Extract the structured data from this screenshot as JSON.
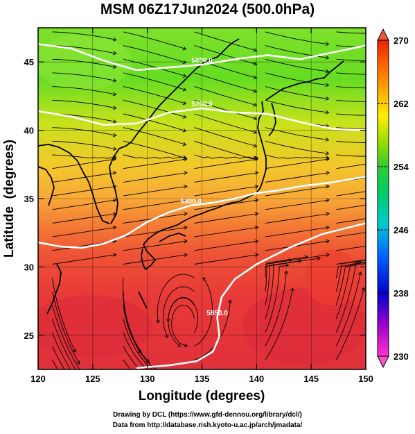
{
  "title": "MSM 06Z17Jun2024 (500.0hPa)",
  "axes": {
    "xlabel": "Longitude (degrees)",
    "ylabel": "Latitude  (degrees)",
    "xticks": [
      "120",
      "125",
      "130",
      "135",
      "140",
      "145",
      "150"
    ],
    "yticks": [
      "25",
      "30",
      "35",
      "40",
      "45"
    ]
  },
  "colorbar": {
    "ticks": [
      "230",
      "238",
      "246",
      "254",
      "262",
      "270"
    ],
    "colors": [
      "#ff33cc",
      "#9900cc",
      "#0000cc",
      "#0066ff",
      "#00cccc",
      "#00cc66",
      "#33cc33",
      "#99dd00",
      "#ffee00",
      "#ffaa00",
      "#ff6600",
      "#ee2200"
    ]
  },
  "contour_labels": [
    "5600.0",
    "5700.0",
    "5800.0",
    "5850.0"
  ],
  "credits": [
    "Drawing by DCL (https://www.gfd-dennou.org/library/dcl/)",
    "Data from http://database.rish.kyoto-u.ac.jp/arch/jmadata/"
  ],
  "chart_data": {
    "type": "heatmap",
    "variable": "temperature with streamlines and geopotential height contours",
    "level_hPa": 500.0,
    "xlim": [
      120,
      150
    ],
    "ylim": [
      22.5,
      47.5
    ],
    "colorbar_range": [
      230,
      270
    ],
    "contours": [
      {
        "label": "5600.0",
        "points": [
          [
            120,
            46.3
          ],
          [
            123,
            46.0
          ],
          [
            126,
            45.1
          ],
          [
            129,
            44.4
          ],
          [
            132,
            44.6
          ],
          [
            135,
            44.8
          ],
          [
            138,
            45.2
          ],
          [
            141,
            45.5
          ],
          [
            144,
            45.2
          ],
          [
            147,
            45.7
          ],
          [
            150,
            46.2
          ]
        ]
      },
      {
        "label": "5700.0",
        "points": [
          [
            120,
            41.4
          ],
          [
            123,
            41.0
          ],
          [
            126,
            40.4
          ],
          [
            129,
            40.5
          ],
          [
            132,
            41.3
          ],
          [
            135,
            41.6
          ],
          [
            138,
            41.3
          ],
          [
            141,
            41.2
          ],
          [
            144,
            40.6
          ],
          [
            147,
            40.1
          ],
          [
            150,
            40.0
          ]
        ]
      },
      {
        "label": "5800.0",
        "points": [
          [
            120,
            31.8
          ],
          [
            122,
            31.5
          ],
          [
            124,
            31.4
          ],
          [
            126,
            31.7
          ],
          [
            128,
            32.3
          ],
          [
            130,
            33.3
          ],
          [
            132,
            34.0
          ],
          [
            134,
            34.5
          ],
          [
            136,
            34.7
          ],
          [
            138,
            35.0
          ],
          [
            140,
            35.4
          ],
          [
            142,
            35.6
          ],
          [
            144,
            35.9
          ],
          [
            147,
            36.2
          ],
          [
            150,
            36.6
          ]
        ]
      },
      {
        "label": "5850.0",
        "points": [
          [
            150,
            33.2
          ],
          [
            146,
            32.4
          ],
          [
            143,
            31.4
          ],
          [
            140,
            30.2
          ],
          [
            138,
            29.1
          ],
          [
            136.8,
            27.8
          ],
          [
            136.4,
            26.3
          ],
          [
            136.6,
            24.9
          ],
          [
            136.0,
            23.8
          ],
          [
            134.5,
            23.1
          ],
          [
            132,
            22.8
          ],
          [
            129,
            22.6
          ]
        ]
      }
    ]
  }
}
